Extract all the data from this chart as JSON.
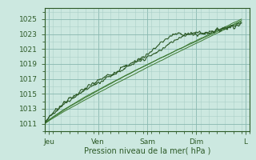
{
  "title": "",
  "xlabel": "Pression niveau de la mer( hPa )",
  "ylim": [
    1010.0,
    1026.5
  ],
  "xlim": [
    0,
    100
  ],
  "yticks": [
    1011,
    1013,
    1015,
    1017,
    1019,
    1021,
    1023,
    1025
  ],
  "day_labels": [
    "Jeu",
    "Ven",
    "Sam",
    "Dim",
    "L"
  ],
  "day_positions": [
    2,
    26,
    50,
    74,
    98
  ],
  "bg_color": "#cce8e0",
  "grid_color_minor": "#aacfc8",
  "grid_color_major": "#88b8b0",
  "line_color": "#2d5a27",
  "line_color2": "#3d7a32",
  "tick_label_color": "#2d5a27",
  "xlabel_color": "#2d5a27"
}
